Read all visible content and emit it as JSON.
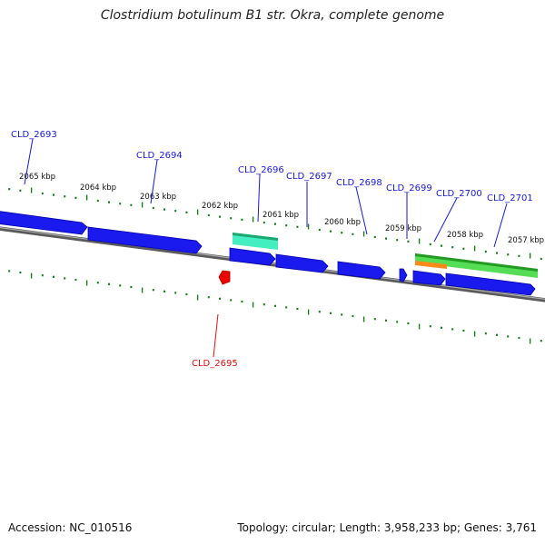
{
  "title": "Clostridium botulinum B1 str. Okra, complete genome",
  "footer": {
    "accession": "Accession: NC_010516",
    "summary": "Topology: circular; Length: 3,958,233 bp; Genes: 3,761"
  },
  "colors": {
    "gene": "#1a1aee",
    "gene_dark": "#0000aa",
    "highlight_gene": "#ee0000",
    "label": "#1a1acc",
    "highlight_label": "#dd1111",
    "tick": "#1a7a1a",
    "backbone": "#888888",
    "cyan_feature": "#33e0b0",
    "green_feature": "#44cc44",
    "orange_feature": "#ff8800"
  },
  "scale_labels": [
    "2065 kbp",
    "2064 kbp",
    "2063 kbp",
    "2062 kbp",
    "2061 kbp",
    "2060 kbp",
    "2059 kbp",
    "2058 kbp",
    "2057 kbp"
  ],
  "gene_labels": [
    {
      "id": "CLD_2693",
      "highlight": false
    },
    {
      "id": "CLD_2694",
      "highlight": false
    },
    {
      "id": "CLD_2696",
      "highlight": false
    },
    {
      "id": "CLD_2697",
      "highlight": false
    },
    {
      "id": "CLD_2698",
      "highlight": false
    },
    {
      "id": "CLD_2699",
      "highlight": false
    },
    {
      "id": "CLD_2700",
      "highlight": false
    },
    {
      "id": "CLD_2701",
      "highlight": false
    },
    {
      "id": "CLD_2695",
      "highlight": true
    }
  ]
}
